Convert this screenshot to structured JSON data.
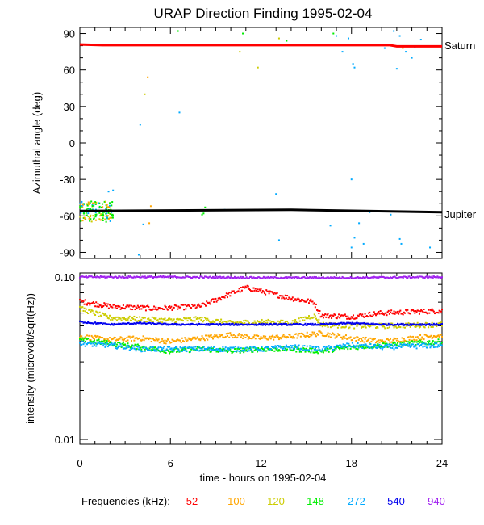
{
  "chart_data": [
    {
      "type": "scatter",
      "title": "URAP Direction Finding  1995-02-04",
      "ylabel": "Azimuthal angle (deg)",
      "xlabel": "",
      "xlim": [
        0,
        24
      ],
      "ylim": [
        -95,
        95
      ],
      "yticks": [
        90,
        60,
        30,
        0,
        -30,
        -60,
        -90
      ],
      "reference_lines": [
        {
          "name": "Saturn",
          "color": "#ff0000",
          "points": [
            [
              0,
              81
            ],
            [
              1.5,
              80.5
            ],
            [
              20.5,
              80.5
            ],
            [
              21,
              79.5
            ],
            [
              24,
              79.5
            ]
          ]
        },
        {
          "name": "Jupiter",
          "color": "#000000",
          "points": [
            [
              0,
              -56
            ],
            [
              14,
              -55
            ],
            [
              24,
              -57
            ]
          ]
        }
      ],
      "clusters": [
        {
          "desc": "multi-frequency cluster near Jupiter at start of day",
          "x": [
            0,
            2.2
          ],
          "y": [
            -65,
            -48
          ]
        },
        {
          "desc": "scattered 272 kHz points",
          "freq": "272"
        }
      ]
    },
    {
      "type": "line",
      "ylabel": "intensity (microvolt/sqrt(Hz))",
      "xlabel": "time - hours on 1995-02-04",
      "xlim": [
        0,
        24
      ],
      "ylim_log": [
        0.01,
        0.1
      ],
      "ytick_labels": [
        "0.10",
        "0.01"
      ],
      "xticks": [
        0,
        6,
        12,
        18,
        24
      ],
      "series": [
        {
          "name": "52",
          "color": "#ff0000",
          "knots": [
            [
              0,
              0.071
            ],
            [
              2,
              0.066
            ],
            [
              5,
              0.064
            ],
            [
              8,
              0.066
            ],
            [
              10,
              0.079
            ],
            [
              11,
              0.086
            ],
            [
              12,
              0.082
            ],
            [
              14,
              0.074
            ],
            [
              15.5,
              0.07
            ],
            [
              16,
              0.058
            ],
            [
              18,
              0.057
            ],
            [
              20,
              0.06
            ],
            [
              24,
              0.062
            ]
          ]
        },
        {
          "name": "100",
          "color": "#ffa500",
          "knots": [
            [
              0,
              0.043
            ],
            [
              2,
              0.041
            ],
            [
              4,
              0.042
            ],
            [
              6,
              0.04
            ],
            [
              8,
              0.042
            ],
            [
              10,
              0.044
            ],
            [
              12,
              0.042
            ],
            [
              14,
              0.043
            ],
            [
              16,
              0.045
            ],
            [
              18,
              0.042
            ],
            [
              20,
              0.04
            ],
            [
              24,
              0.044
            ]
          ]
        },
        {
          "name": "120",
          "color": "#cccc00",
          "knots": [
            [
              0,
              0.064
            ],
            [
              2,
              0.056
            ],
            [
              4,
              0.055
            ],
            [
              6,
              0.054
            ],
            [
              8,
              0.055
            ],
            [
              10,
              0.052
            ],
            [
              12,
              0.053
            ],
            [
              14,
              0.052
            ],
            [
              15.5,
              0.058
            ],
            [
              16,
              0.051
            ],
            [
              18,
              0.05
            ],
            [
              20,
              0.05
            ],
            [
              24,
              0.051
            ]
          ]
        },
        {
          "name": "148",
          "color": "#00ee00",
          "knots": [
            [
              0,
              0.041
            ],
            [
              2,
              0.039
            ],
            [
              4,
              0.037
            ],
            [
              6,
              0.035
            ],
            [
              8,
              0.036
            ],
            [
              10,
              0.035
            ],
            [
              12,
              0.036
            ],
            [
              14,
              0.036
            ],
            [
              16,
              0.035
            ],
            [
              18,
              0.037
            ],
            [
              20,
              0.038
            ],
            [
              24,
              0.04
            ]
          ]
        },
        {
          "name": "272",
          "color": "#00aaff",
          "knots": [
            [
              0,
              0.039
            ],
            [
              2,
              0.038
            ],
            [
              4,
              0.036
            ],
            [
              6,
              0.036
            ],
            [
              8,
              0.036
            ],
            [
              10,
              0.036
            ],
            [
              12,
              0.036
            ],
            [
              14,
              0.037
            ],
            [
              16,
              0.036
            ],
            [
              18,
              0.038
            ],
            [
              20,
              0.037
            ],
            [
              24,
              0.038
            ]
          ]
        },
        {
          "name": "540",
          "color": "#0000ee",
          "knots": [
            [
              0,
              0.053
            ],
            [
              2,
              0.051
            ],
            [
              4,
              0.052
            ],
            [
              6,
              0.051
            ],
            [
              8,
              0.051
            ],
            [
              10,
              0.051
            ],
            [
              12,
              0.051
            ],
            [
              14,
              0.051
            ],
            [
              16,
              0.051
            ],
            [
              18,
              0.052
            ],
            [
              20,
              0.051
            ],
            [
              24,
              0.051
            ]
          ]
        },
        {
          "name": "940",
          "color": "#a020f0",
          "knots": [
            [
              0,
              0.1
            ],
            [
              6,
              0.1
            ],
            [
              12,
              0.099
            ],
            [
              18,
              0.099
            ],
            [
              24,
              0.1
            ]
          ]
        }
      ]
    }
  ],
  "legend": {
    "label": "Frequencies (kHz):",
    "items": [
      {
        "text": "52",
        "color": "#ff0000"
      },
      {
        "text": "100",
        "color": "#ffa500"
      },
      {
        "text": "120",
        "color": "#cccc00"
      },
      {
        "text": "148",
        "color": "#00ee00"
      },
      {
        "text": "272",
        "color": "#00aaff"
      },
      {
        "text": "540",
        "color": "#0000ee"
      },
      {
        "text": "940",
        "color": "#a020f0"
      }
    ]
  }
}
